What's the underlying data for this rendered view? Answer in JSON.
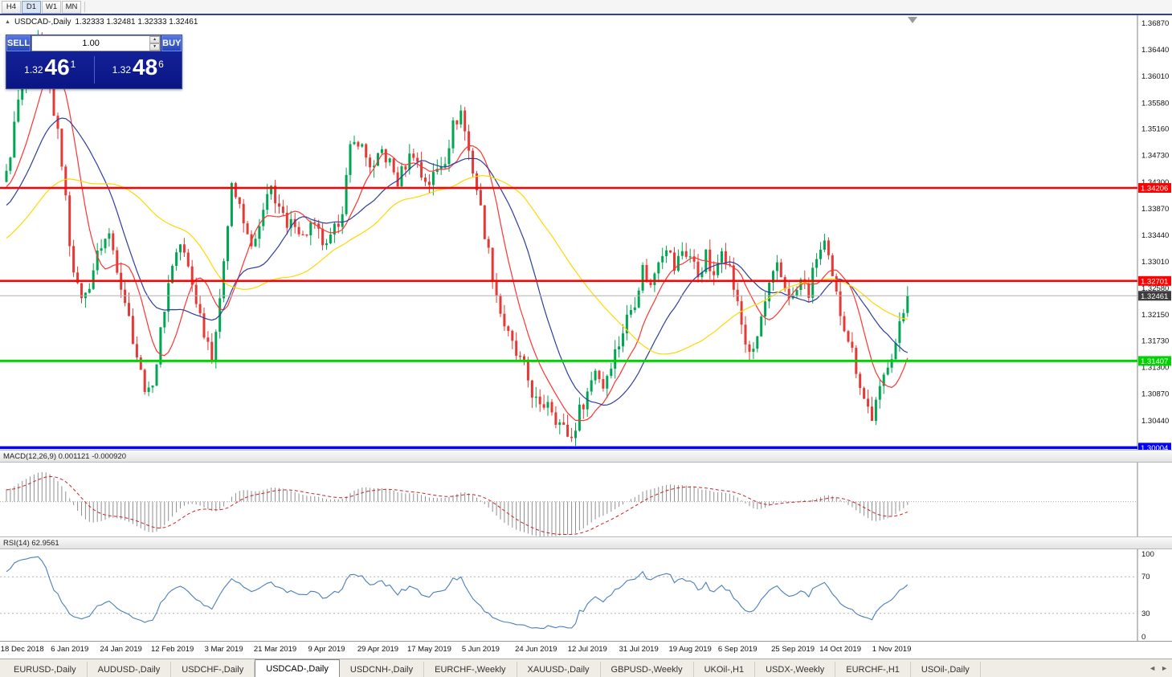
{
  "toolbar": {
    "timeframes": [
      {
        "label": "H4",
        "active": false
      },
      {
        "label": "D1",
        "active": true
      },
      {
        "label": "W1",
        "active": false
      },
      {
        "label": "MN",
        "active": false
      }
    ]
  },
  "icons": {
    "collapse": "▲",
    "spin_up": "▲",
    "spin_down": "▼",
    "scroll_left": "◄",
    "scroll_right": "►"
  },
  "chart": {
    "title": "USDCAD-,Daily",
    "ohlc": "1.32333 1.32481 1.32333 1.32461",
    "trade_panel": {
      "sell_label": "SELL",
      "buy_label": "BUY",
      "volume": "1.00",
      "sell_price": {
        "base": "1.32",
        "big": "46",
        "sup": "1"
      },
      "buy_price": {
        "base": "1.32",
        "big": "48",
        "sup": "6"
      }
    },
    "price_scale": [
      "1.36870",
      "1.36440",
      "1.36010",
      "1.35580",
      "1.35160",
      "1.34730",
      "1.34300",
      "1.33870",
      "1.33440",
      "1.33010",
      "1.32580",
      "1.32150",
      "1.31730",
      "1.31300",
      "1.30870",
      "1.30440"
    ],
    "levels": [
      {
        "value": 1.34206,
        "label": "1.34206",
        "color": "#ff0000",
        "width": 2.5
      },
      {
        "value": 1.32701,
        "label": "1.32701",
        "color": "#ff0000",
        "width": 2.5
      },
      {
        "value": 1.31407,
        "label": "1.31407",
        "color": "#00d400",
        "width": 3
      },
      {
        "value": 1.30004,
        "label": "1.30004",
        "color": "#0000ff",
        "width": 3.5
      }
    ],
    "current_price": {
      "value": 1.32461,
      "label": "1.32461",
      "color": "#3c3c3c"
    }
  },
  "chart_data": {
    "type": "candlestick",
    "symbol": "USDCAD",
    "timeframe": "Daily",
    "last_close": 1.32461,
    "candle_count": 229,
    "y_range": [
      1.2997,
      1.37
    ],
    "colors": {
      "up": "#00a651",
      "down": "#e53935",
      "macd_signal": "#cc2222",
      "rsi_line": "#4a7ebb"
    },
    "mas": [
      {
        "period": 10,
        "color": "#ff3333"
      },
      {
        "period": 20,
        "color": "#2c3e9e"
      },
      {
        "period": 45,
        "color": "#ffd700"
      }
    ],
    "anchors": [
      [
        -60,
        1.318
      ],
      [
        -50,
        1.3225
      ],
      [
        -40,
        1.327
      ],
      [
        -30,
        1.331
      ],
      [
        -20,
        1.3335
      ],
      [
        -10,
        1.339
      ],
      [
        -5,
        1.342
      ],
      [
        0,
        1.344
      ],
      [
        3,
        1.356
      ],
      [
        5,
        1.36
      ],
      [
        8,
        1.3655
      ],
      [
        10,
        1.3625
      ],
      [
        12,
        1.3545
      ],
      [
        14,
        1.3465
      ],
      [
        16,
        1.3335
      ],
      [
        18,
        1.3255
      ],
      [
        20,
        1.3245
      ],
      [
        22,
        1.329
      ],
      [
        24,
        1.333
      ],
      [
        26,
        1.3345
      ],
      [
        28,
        1.3295
      ],
      [
        30,
        1.324
      ],
      [
        32,
        1.318
      ],
      [
        34,
        1.312
      ],
      [
        36,
        1.3085
      ],
      [
        38,
        1.314
      ],
      [
        40,
        1.323
      ],
      [
        42,
        1.33
      ],
      [
        44,
        1.333
      ],
      [
        46,
        1.329
      ],
      [
        48,
        1.324
      ],
      [
        50,
        1.319
      ],
      [
        52,
        1.3155
      ],
      [
        54,
        1.323
      ],
      [
        55,
        1.331
      ],
      [
        57,
        1.343
      ],
      [
        59,
        1.3385
      ],
      [
        61,
        1.334
      ],
      [
        63,
        1.333
      ],
      [
        65,
        1.338
      ],
      [
        67,
        1.342
      ],
      [
        69,
        1.339
      ],
      [
        71,
        1.335
      ],
      [
        73,
        1.337
      ],
      [
        75,
        1.334
      ],
      [
        77,
        1.336
      ],
      [
        79,
        1.3345
      ],
      [
        81,
        1.332
      ],
      [
        83,
        1.335
      ],
      [
        85,
        1.339
      ],
      [
        87,
        1.348
      ],
      [
        89,
        1.35
      ],
      [
        91,
        1.347
      ],
      [
        93,
        1.345
      ],
      [
        95,
        1.348
      ],
      [
        97,
        1.346
      ],
      [
        99,
        1.343
      ],
      [
        101,
        1.346
      ],
      [
        103,
        1.348
      ],
      [
        105,
        1.344
      ],
      [
        107,
        1.343
      ],
      [
        109,
        1.345
      ],
      [
        111,
        1.347
      ],
      [
        113,
        1.352
      ],
      [
        115,
        1.3545
      ],
      [
        117,
        1.348
      ],
      [
        119,
        1.342
      ],
      [
        121,
        1.335
      ],
      [
        123,
        1.328
      ],
      [
        125,
        1.322
      ],
      [
        127,
        1.318
      ],
      [
        129,
        1.315
      ],
      [
        131,
        1.313
      ],
      [
        133,
        1.309
      ],
      [
        135,
        1.306
      ],
      [
        137,
        1.308
      ],
      [
        139,
        1.305
      ],
      [
        141,
        1.303
      ],
      [
        143,
        1.3015
      ],
      [
        145,
        1.306
      ],
      [
        147,
        1.309
      ],
      [
        149,
        1.313
      ],
      [
        151,
        1.31
      ],
      [
        153,
        1.314
      ],
      [
        155,
        1.317
      ],
      [
        157,
        1.321
      ],
      [
        159,
        1.324
      ],
      [
        161,
        1.329
      ],
      [
        163,
        1.326
      ],
      [
        165,
        1.331
      ],
      [
        167,
        1.333
      ],
      [
        169,
        1.329
      ],
      [
        171,
        1.332
      ],
      [
        173,
        1.331
      ],
      [
        175,
        1.328
      ],
      [
        177,
        1.331
      ],
      [
        179,
        1.327
      ],
      [
        181,
        1.333
      ],
      [
        183,
        1.329
      ],
      [
        185,
        1.323
      ],
      [
        187,
        1.317
      ],
      [
        189,
        1.315
      ],
      [
        191,
        1.321
      ],
      [
        193,
        1.326
      ],
      [
        195,
        1.329
      ],
      [
        197,
        1.326
      ],
      [
        199,
        1.324
      ],
      [
        201,
        1.327
      ],
      [
        203,
        1.325
      ],
      [
        205,
        1.331
      ],
      [
        207,
        1.333
      ],
      [
        209,
        1.327
      ],
      [
        211,
        1.322
      ],
      [
        213,
        1.318
      ],
      [
        215,
        1.313
      ],
      [
        217,
        1.308
      ],
      [
        219,
        1.305
      ],
      [
        221,
        1.309
      ],
      [
        223,
        1.314
      ],
      [
        225,
        1.317
      ],
      [
        227,
        1.322
      ],
      [
        228,
        1.3246
      ]
    ],
    "x_ticks": [
      "18 Dec 2018",
      "6 Jan 2019",
      "24 Jan 2019",
      "12 Feb 2019",
      "3 Mar 2019",
      "21 Mar 2019",
      "9 Apr 2019",
      "29 Apr 2019",
      "17 May 2019",
      "5 Jun 2019",
      "24 Jun 2019",
      "12 Jul 2019",
      "31 Jul 2019",
      "19 Aug 2019",
      "6 Sep 2019",
      "25 Sep 2019",
      "14 Oct 2019",
      "1 Nov 2019"
    ],
    "x_tick_indices": [
      4,
      16,
      29,
      42,
      55,
      68,
      81,
      94,
      107,
      120,
      134,
      147,
      160,
      173,
      185,
      199,
      211,
      224
    ]
  },
  "macd_panel": {
    "label": "MACD(12,26,9) 0.001121 -0.000920",
    "scale": [
      "0.010311",
      "0.00",
      "-0.00920"
    ]
  },
  "rsi_panel": {
    "label": "RSI(14) 62.9561",
    "scale": [
      "100",
      "70",
      "30",
      "0"
    ],
    "levels": [
      70,
      30
    ]
  },
  "tabbar": {
    "tabs": [
      {
        "label": "EURUSD-,Daily",
        "active": false
      },
      {
        "label": "AUDUSD-,Daily",
        "active": false
      },
      {
        "label": "USDCHF-,Daily",
        "active": false
      },
      {
        "label": "USDCAD-,Daily",
        "active": true
      },
      {
        "label": "USDCNH-,Daily",
        "active": false
      },
      {
        "label": "EURCHF-,Weekly",
        "active": false
      },
      {
        "label": "XAUUSD-,Daily",
        "active": false
      },
      {
        "label": "GBPUSD-,Weekly",
        "active": false
      },
      {
        "label": "UKOil-,H1",
        "active": false
      },
      {
        "label": "USDX-,Weekly",
        "active": false
      },
      {
        "label": "EURCHF-,H1",
        "active": false
      },
      {
        "label": "USOil-,Daily",
        "active": false
      }
    ]
  }
}
